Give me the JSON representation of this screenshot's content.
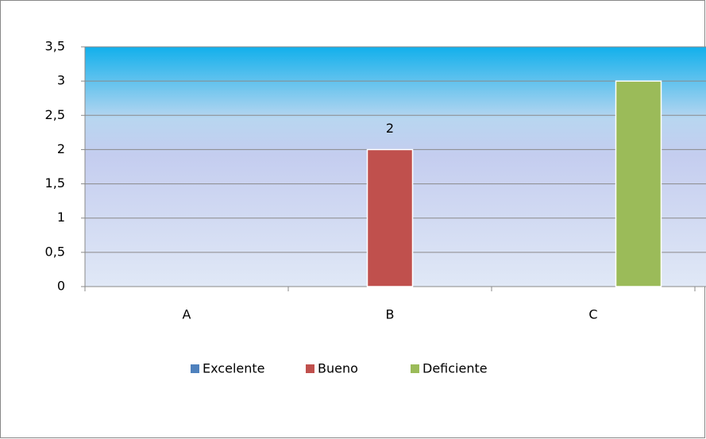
{
  "chart_data": {
    "type": "bar",
    "categories": [
      "A",
      "B",
      "C"
    ],
    "series": [
      {
        "name": "Excelente",
        "color": "#4f81bd",
        "values": [
          0,
          0,
          0
        ],
        "data_labels": false
      },
      {
        "name": "Bueno",
        "color": "#c0504d",
        "values": [
          0,
          2,
          0
        ],
        "data_labels": [
          false,
          true,
          false
        ]
      },
      {
        "name": "Deficiente",
        "color": "#9bbb59",
        "values": [
          0,
          0,
          3
        ],
        "data_labels": false
      }
    ],
    "ylim": [
      0,
      3.5
    ],
    "yticks": [
      0,
      {
        "value": 0.5,
        "label": "0,5"
      },
      1,
      {
        "value": 1.5,
        "label": "1,5"
      },
      2,
      {
        "value": 2.5,
        "label": "2,5"
      },
      3,
      {
        "value": 3.5,
        "label": "3,5"
      }
    ],
    "grid": true,
    "legend": "bottom"
  }
}
